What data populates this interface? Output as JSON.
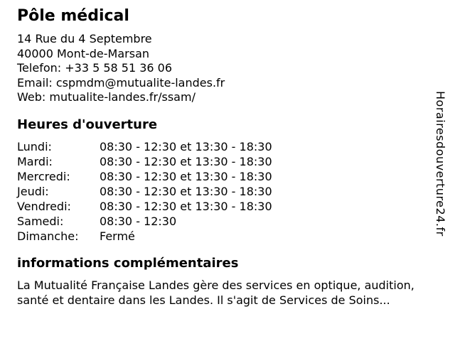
{
  "business": {
    "name": "Pôle médical",
    "address": [
      "14 Rue du 4 Septembre",
      "40000 Mont-de-Marsan"
    ],
    "phone_line": "Telefon: +33 5 58 51 36 06",
    "email_line": "Email: cspmdm@mutualite-landes.fr",
    "web_line": "Web: mutualite-landes.fr/ssam/"
  },
  "hours": {
    "heading": "Heures d'ouverture",
    "rows": [
      {
        "day": "Lundi:",
        "time": "08:30 - 12:30 et 13:30 - 18:30"
      },
      {
        "day": "Mardi:",
        "time": "08:30 - 12:30 et 13:30 - 18:30"
      },
      {
        "day": "Mercredi:",
        "time": "08:30 - 12:30 et 13:30 - 18:30"
      },
      {
        "day": "Jeudi:",
        "time": "08:30 - 12:30 et 13:30 - 18:30"
      },
      {
        "day": "Vendredi:",
        "time": "08:30 - 12:30 et 13:30 - 18:30"
      },
      {
        "day": "Samedi:",
        "time": "08:30 - 12:30"
      },
      {
        "day": "Dimanche:",
        "time": "Fermé"
      }
    ]
  },
  "additional_info": {
    "heading": "informations complémentaires",
    "lines": [
      "La Mutualité Française Landes gère des services en optique, audition,",
      "santé et dentaire dans les Landes. Il s'agit de Services de Soins..."
    ]
  },
  "watermark": {
    "site_name": "Horairesdouverture24.fr"
  },
  "colors": {
    "text": "#000000",
    "background": "#ffffff"
  }
}
